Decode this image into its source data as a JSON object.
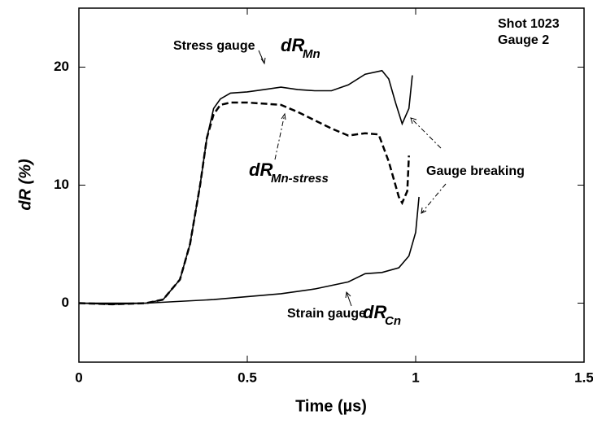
{
  "chart_data": {
    "type": "line",
    "xlabel": "Time (µs)",
    "ylabel": "dR (%)",
    "xlim": [
      0,
      1.5
    ],
    "xticks": [
      0,
      0.5,
      1,
      1.5
    ],
    "ylim": [
      -5,
      25
    ],
    "yticks": [
      0,
      10,
      20
    ],
    "annotations": [
      {
        "text": "Shot 1023"
      },
      {
        "text": "Gauge 2"
      },
      {
        "text": "Stress gauge"
      },
      {
        "text": "dR",
        "sub": "Mn"
      },
      {
        "text": "dR",
        "sub": "Mn-stress"
      },
      {
        "text": "Gauge breaking"
      },
      {
        "text": "Strain gauge"
      },
      {
        "text": "dR",
        "sub": "Cn"
      }
    ],
    "series": [
      {
        "color": "#000000",
        "dashed": false,
        "x": [
          0,
          0.1,
          0.2,
          0.25,
          0.3,
          0.33,
          0.36,
          0.38,
          0.4,
          0.42,
          0.45,
          0.5,
          0.55,
          0.6,
          0.65,
          0.7,
          0.75,
          0.8,
          0.85,
          0.9,
          0.92,
          0.94,
          0.96,
          0.98,
          0.99
        ],
        "values": [
          0,
          -0.1,
          0,
          0.3,
          2,
          5,
          10,
          14,
          16.5,
          17.3,
          17.8,
          17.9,
          18.1,
          18.3,
          18.1,
          18,
          18,
          18.5,
          19.4,
          19.7,
          19,
          17,
          15.2,
          16.5,
          19.3
        ]
      },
      {
        "color": "#000000",
        "dashed": true,
        "x": [
          0,
          0.1,
          0.2,
          0.25,
          0.3,
          0.33,
          0.36,
          0.38,
          0.4,
          0.42,
          0.45,
          0.5,
          0.55,
          0.6,
          0.65,
          0.7,
          0.75,
          0.8,
          0.85,
          0.89,
          0.92,
          0.95,
          0.96,
          0.975,
          0.98
        ],
        "values": [
          0,
          -0.1,
          0,
          0.3,
          2,
          5,
          10,
          14,
          16,
          16.8,
          17,
          17,
          16.9,
          16.8,
          16.2,
          15.5,
          14.8,
          14.2,
          14.4,
          14.3,
          12,
          9,
          8.5,
          9.5,
          12.5
        ]
      },
      {
        "color": "#000000",
        "dashed": false,
        "x": [
          0,
          0.2,
          0.4,
          0.6,
          0.7,
          0.8,
          0.85,
          0.9,
          0.95,
          0.98,
          1.0,
          1.01
        ],
        "values": [
          0,
          0,
          0.3,
          0.8,
          1.2,
          1.8,
          2.5,
          2.6,
          3,
          4,
          6,
          9
        ]
      }
    ]
  }
}
